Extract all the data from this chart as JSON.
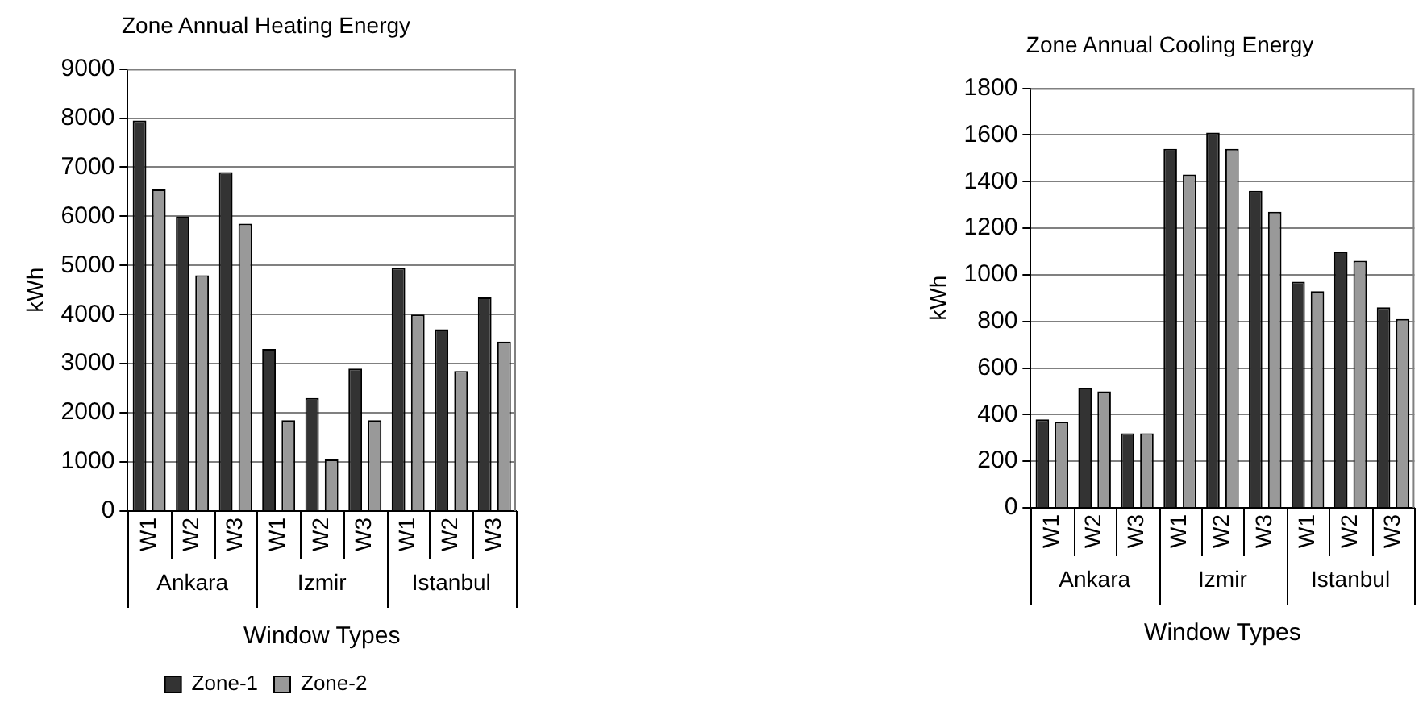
{
  "chart_data": [
    {
      "type": "bar",
      "title": "Zone Annual Heating Energy",
      "xlabel": "Window Types",
      "ylabel": "kWh",
      "categories": [
        "W1",
        "W2",
        "W3",
        "W1",
        "W2",
        "W3",
        "W1",
        "W2",
        "W3"
      ],
      "annotations": [
        "Ankara",
        "Izmir",
        "Istanbul"
      ],
      "series": [
        {
          "name": "Zone-1",
          "color": "#333333",
          "values": [
            7950,
            6000,
            6900,
            3300,
            2300,
            2900,
            4950,
            3700,
            4350
          ]
        },
        {
          "name": "Zone-2",
          "color": "#999999",
          "values": [
            6550,
            4800,
            5850,
            1850,
            1050,
            1850,
            4000,
            2850,
            3450
          ]
        }
      ],
      "ylim": [
        0,
        9000
      ],
      "yticks": [
        0,
        1000,
        2000,
        3000,
        4000,
        5000,
        6000,
        7000,
        8000,
        9000
      ],
      "grid": "y",
      "legend": "bottom"
    },
    {
      "type": "bar",
      "title": "Zone Annual Cooling Energy",
      "xlabel": "Window Types",
      "ylabel": "kWh",
      "categories": [
        "W1",
        "W2",
        "W3",
        "W1",
        "W2",
        "W3",
        "W1",
        "W2",
        "W3"
      ],
      "annotations": [
        "Ankara",
        "Izmir",
        "Istanbul"
      ],
      "series": [
        {
          "color": "#333333",
          "values": [
            380,
            515,
            320,
            1540,
            1610,
            1360,
            970,
            1100,
            860
          ]
        },
        {
          "color": "#999999",
          "values": [
            370,
            500,
            320,
            1430,
            1540,
            1270,
            930,
            1060,
            810
          ]
        }
      ],
      "ylim": [
        0,
        1800
      ],
      "yticks": [
        0,
        200,
        400,
        600,
        800,
        1000,
        1200,
        1400,
        1600,
        1800
      ],
      "grid": "y"
    }
  ]
}
